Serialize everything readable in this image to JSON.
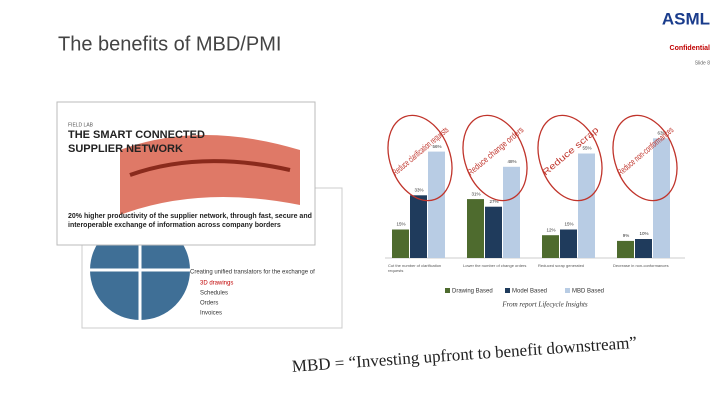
{
  "header": {
    "title": "The benefits of MBD/PMI",
    "logo": "ASML",
    "confidential": "Confidential",
    "slide": "Slide 8"
  },
  "field_lab": {
    "tag": "FIELD LAB",
    "heading": "THE SMART CONNECTED SUPPLIER NETWORK",
    "claim": "20% higher productivity of the supplier network, through fast, secure and interoperable exchange of information across company borders"
  },
  "back_card": {
    "intro": "Creating unified translators for the exchange of",
    "items": [
      "3D drawings",
      "Schedules",
      "Orders",
      "Invoices"
    ]
  },
  "chart_data": {
    "type": "bar",
    "categories": [
      "Cut the number of clarification requests",
      "Lower the number of change orders",
      "Reduced scrap generated",
      "Decrease in non-conformances"
    ],
    "series": [
      {
        "name": "Drawing Based",
        "color": "#4e6b2e",
        "values": [
          15,
          31,
          12,
          9
        ],
        "value_labels": [
          "15%",
          "31%",
          "12%",
          "9%"
        ]
      },
      {
        "name": "Model Based",
        "color": "#1f3b5c",
        "values": [
          33,
          27,
          15,
          10
        ],
        "value_labels": [
          "33%",
          "27%",
          "15%",
          "10%"
        ]
      },
      {
        "name": "MBD Based",
        "color": "#b8cce4",
        "values": [
          56,
          48,
          55,
          63
        ],
        "value_labels": [
          "56%",
          "48%",
          "55%",
          "63%"
        ]
      }
    ],
    "ylim": [
      0,
      70
    ],
    "annotations": [
      "Reduce clarification requests",
      "Reduce change orders",
      "Reduce scrap",
      "Reduce non-conformances"
    ],
    "source": "From report Lifecycle Insights"
  },
  "quote": "MBD = “Investing upfront to benefit downstream”"
}
